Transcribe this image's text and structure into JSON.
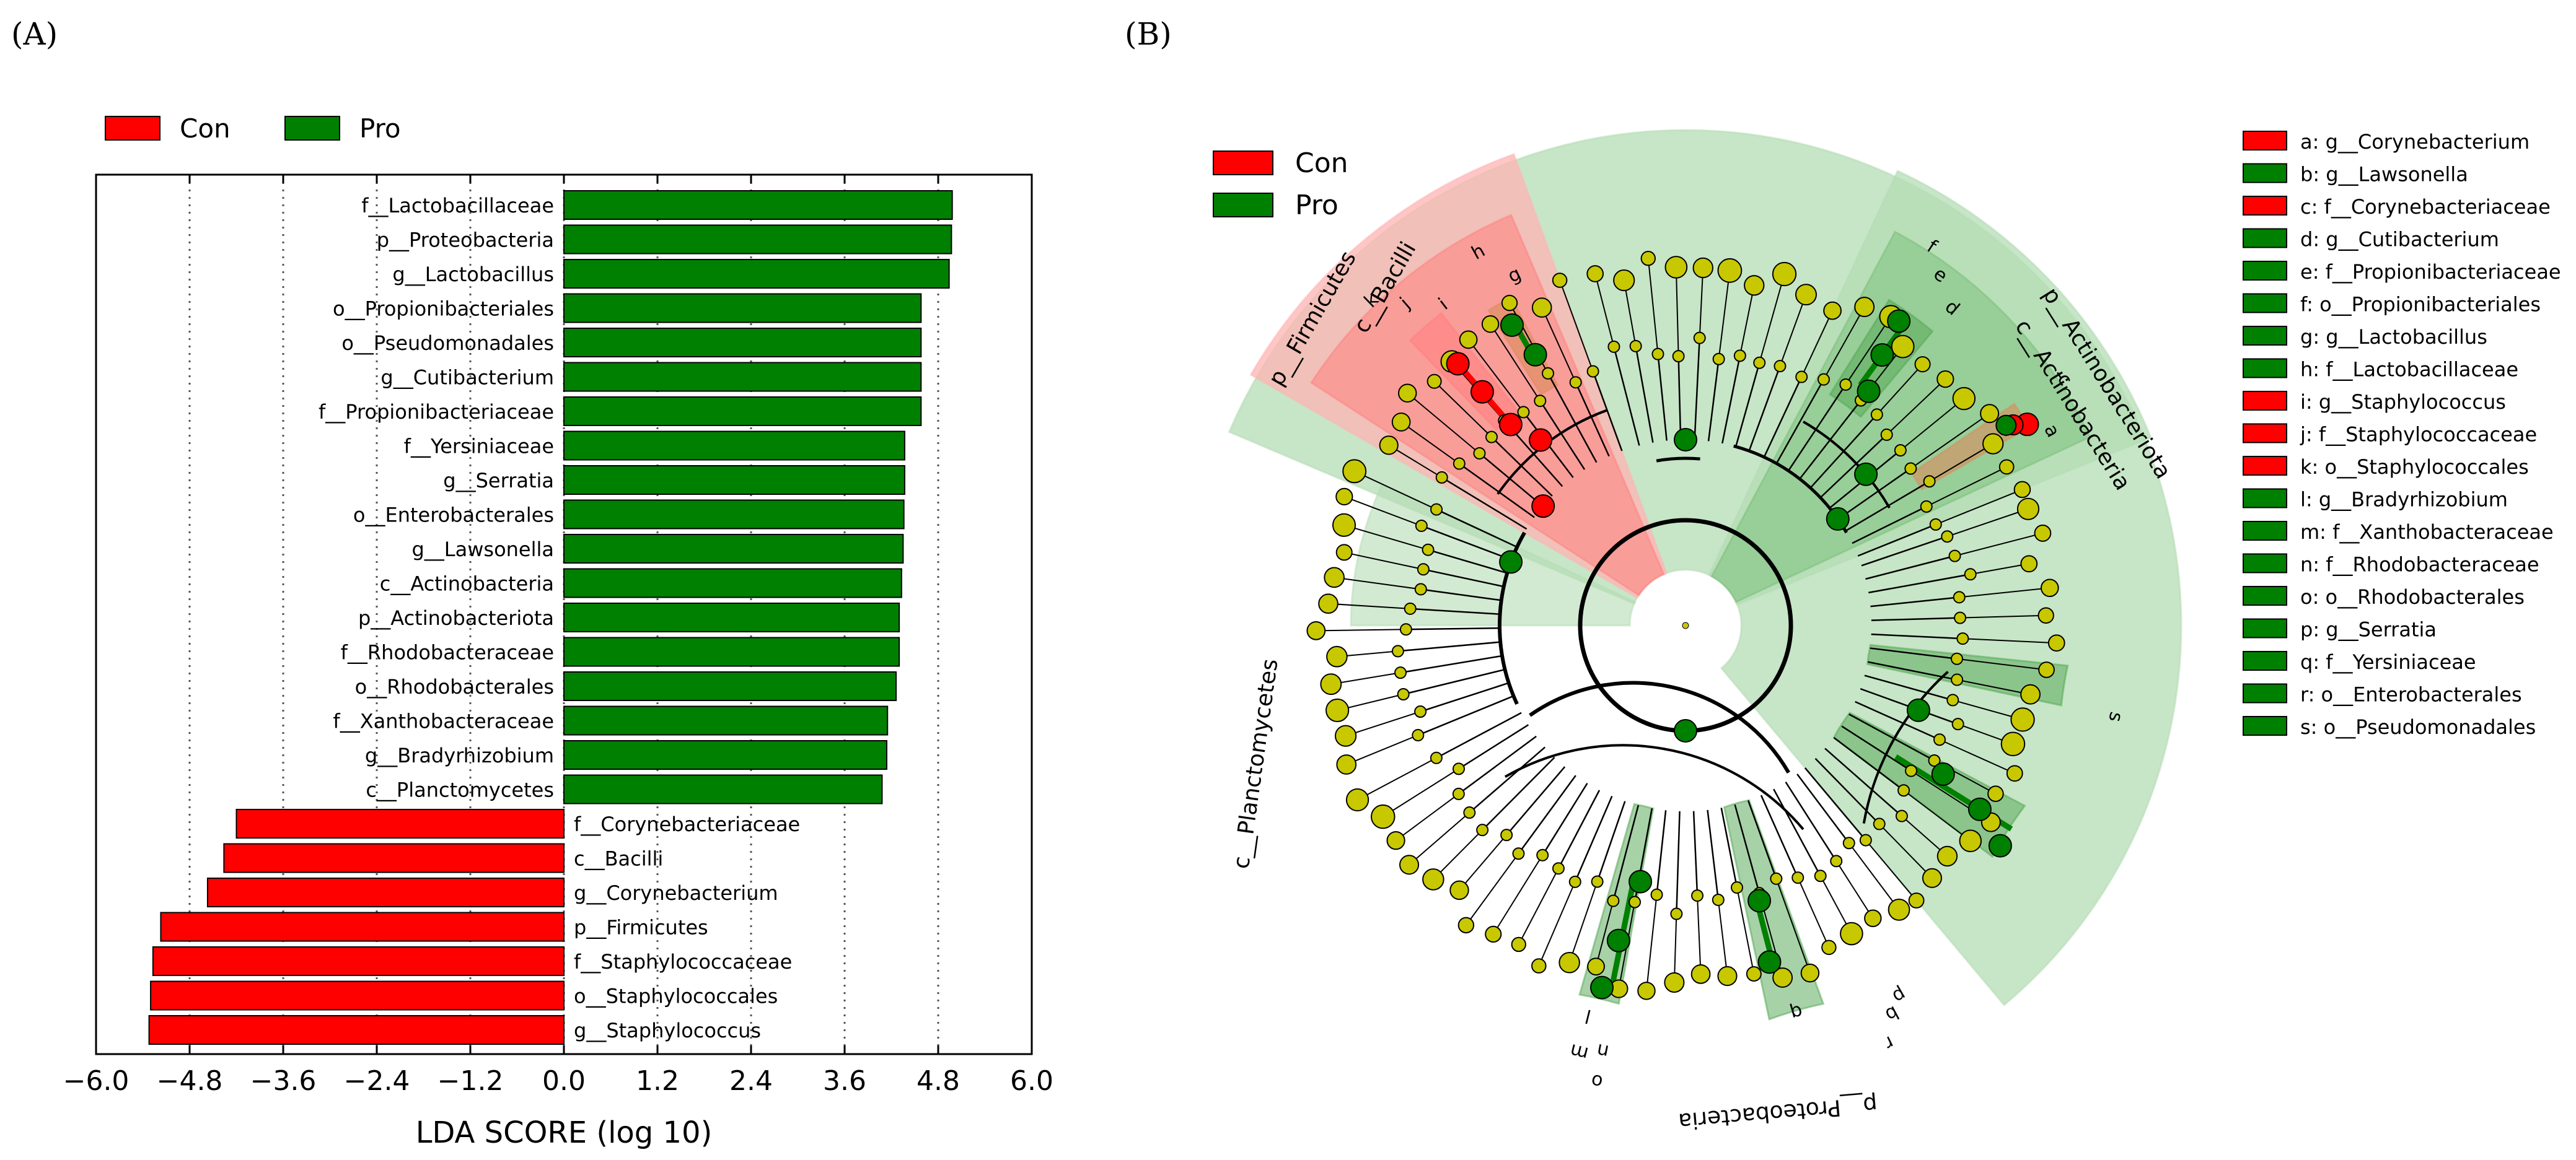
{
  "panel_a": {
    "label": "(A)",
    "legend": [
      {
        "name": "Con",
        "color": "#ff0000"
      },
      {
        "name": "Pro",
        "color": "#008000"
      }
    ],
    "chart_data": {
      "type": "bar",
      "orientation": "horizontal",
      "xlabel": "LDA SCORE (log 10)",
      "xlim": [
        -6.0,
        6.0
      ],
      "xticks": [
        "−6.0",
        "−4.8",
        "−3.6",
        "−2.4",
        "−1.2",
        "0.0",
        "1.2",
        "2.4",
        "3.6",
        "4.8",
        "6.0"
      ],
      "grid": "vertical dotted",
      "bars": [
        {
          "label": "f__Lactobacillaceae",
          "value": 4.98,
          "group": "Pro"
        },
        {
          "label": "p__Proteobacteria",
          "value": 4.97,
          "group": "Pro"
        },
        {
          "label": "g__Lactobacillus",
          "value": 4.94,
          "group": "Pro"
        },
        {
          "label": "o__Propionibacteriales",
          "value": 4.58,
          "group": "Pro"
        },
        {
          "label": "o__Pseudomonadales",
          "value": 4.58,
          "group": "Pro"
        },
        {
          "label": "g__Cutibacterium",
          "value": 4.58,
          "group": "Pro"
        },
        {
          "label": "f__Propionibacteriaceae",
          "value": 4.58,
          "group": "Pro"
        },
        {
          "label": "f__Yersiniaceae",
          "value": 4.37,
          "group": "Pro"
        },
        {
          "label": "g__Serratia",
          "value": 4.37,
          "group": "Pro"
        },
        {
          "label": "o__Enterobacterales",
          "value": 4.36,
          "group": "Pro"
        },
        {
          "label": "g__Lawsonella",
          "value": 4.35,
          "group": "Pro"
        },
        {
          "label": "c__Actinobacteria",
          "value": 4.33,
          "group": "Pro"
        },
        {
          "label": "p__Actinobacteriota",
          "value": 4.3,
          "group": "Pro"
        },
        {
          "label": "f__Rhodobacteraceae",
          "value": 4.3,
          "group": "Pro"
        },
        {
          "label": "o__Rhodobacterales",
          "value": 4.26,
          "group": "Pro"
        },
        {
          "label": "f__Xanthobacteraceae",
          "value": 4.15,
          "group": "Pro"
        },
        {
          "label": "g__Bradyrhizobium",
          "value": 4.14,
          "group": "Pro"
        },
        {
          "label": "c__Planctomycetes",
          "value": 4.08,
          "group": "Pro"
        },
        {
          "label": "f__Corynebacteriaceae",
          "value": -4.2,
          "group": "Con"
        },
        {
          "label": "c__Bacilli",
          "value": -4.36,
          "group": "Con"
        },
        {
          "label": "g__Corynebacterium",
          "value": -4.57,
          "group": "Con"
        },
        {
          "label": "p__Firmicutes",
          "value": -5.17,
          "group": "Con"
        },
        {
          "label": "f__Staphylococcaceae",
          "value": -5.27,
          "group": "Con"
        },
        {
          "label": "o__Staphylococcales",
          "value": -5.3,
          "group": "Con"
        },
        {
          "label": "g__Staphylococcus",
          "value": -5.32,
          "group": "Con"
        }
      ]
    }
  },
  "panel_b": {
    "label": "(B)",
    "legend": [
      {
        "name": "Con",
        "color": "#ff0000"
      },
      {
        "name": "Pro",
        "color": "#008000"
      }
    ],
    "key": [
      {
        "text": "a: g__Corynebacterium",
        "group": "Con"
      },
      {
        "text": "b: g__Lawsonella",
        "group": "Pro"
      },
      {
        "text": "c: f__Corynebacteriaceae",
        "group": "Con"
      },
      {
        "text": "d: g__Cutibacterium",
        "group": "Pro"
      },
      {
        "text": "e: f__Propionibacteriaceae",
        "group": "Pro"
      },
      {
        "text": "f: o__Propionibacteriales",
        "group": "Pro"
      },
      {
        "text": "g: g__Lactobacillus",
        "group": "Pro"
      },
      {
        "text": "h: f__Lactobacillaceae",
        "group": "Pro"
      },
      {
        "text": "i: g__Staphylococcus",
        "group": "Con"
      },
      {
        "text": "j: f__Staphylococcaceae",
        "group": "Con"
      },
      {
        "text": "k: o__Staphylococcales",
        "group": "Con"
      },
      {
        "text": "l: g__Bradyrhizobium",
        "group": "Pro"
      },
      {
        "text": "m: f__Xanthobacteraceae",
        "group": "Pro"
      },
      {
        "text": "n: f__Rhodobacteraceae",
        "group": "Pro"
      },
      {
        "text": "o: o__Rhodobacterales",
        "group": "Pro"
      },
      {
        "text": "p: g__Serratia",
        "group": "Pro"
      },
      {
        "text": "q: f__Yersiniaceae",
        "group": "Pro"
      },
      {
        "text": "r: o__Enterobacterales",
        "group": "Pro"
      },
      {
        "text": "s: o__Pseudomonadales",
        "group": "Pro"
      }
    ],
    "sector_labels": {
      "firmicutes": "p__Firmicutes",
      "bacilli": "c__Bacilli",
      "actinobacteriota": "p__Actinobacteriota",
      "actinobacteria": "c__Actinobacteria",
      "planctomycetes": "c__Planctomycetes",
      "proteobacteria": "p__Proteobacteria"
    },
    "letters": [
      "a",
      "b",
      "c",
      "d",
      "e",
      "f",
      "g",
      "h",
      "i",
      "j",
      "k",
      "l",
      "m",
      "n",
      "o",
      "p",
      "q",
      "r",
      "s"
    ],
    "colors": {
      "con": "#ff0000",
      "pro": "#008000",
      "node": "#c8c800",
      "con_shade": "#ffb3b3",
      "pro_shade": "#b4dcb4"
    }
  }
}
